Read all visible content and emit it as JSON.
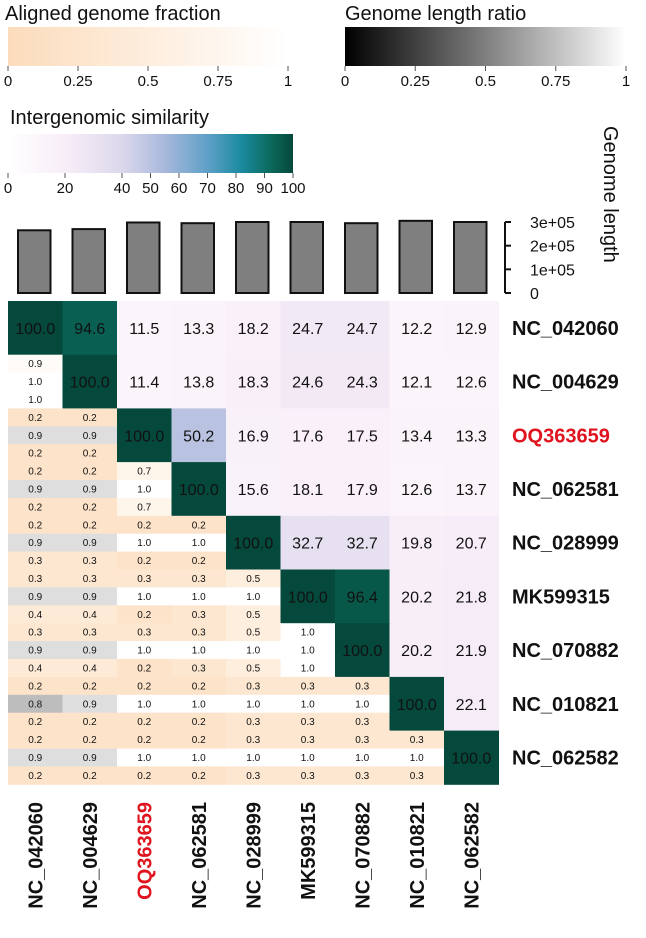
{
  "chart_data": {
    "type": "heatmap",
    "genomes": [
      "NC_042060",
      "NC_004629",
      "OQ363659",
      "NC_062581",
      "NC_028999",
      "MK599315",
      "NC_070882",
      "NC_010821",
      "NC_062582"
    ],
    "highlight_genome": "OQ363659",
    "highlight_color": "#e0141e",
    "similarity_upper": [
      [
        100.0,
        94.6,
        11.5,
        13.3,
        18.2,
        24.7,
        24.7,
        12.2,
        12.9
      ],
      [
        null,
        100.0,
        11.4,
        13.8,
        18.3,
        24.6,
        24.3,
        12.1,
        12.6
      ],
      [
        null,
        null,
        100.0,
        50.2,
        16.9,
        17.6,
        17.5,
        13.4,
        13.3
      ],
      [
        null,
        null,
        null,
        100.0,
        15.6,
        18.1,
        17.9,
        12.6,
        13.7
      ],
      [
        null,
        null,
        null,
        null,
        100.0,
        32.7,
        32.7,
        19.8,
        20.7
      ],
      [
        null,
        null,
        null,
        null,
        null,
        100.0,
        96.4,
        20.2,
        21.8
      ],
      [
        null,
        null,
        null,
        null,
        null,
        null,
        100.0,
        20.2,
        21.9
      ],
      [
        null,
        null,
        null,
        null,
        null,
        null,
        null,
        100.0,
        22.1
      ],
      [
        null,
        null,
        null,
        null,
        null,
        null,
        null,
        null,
        100.0
      ]
    ],
    "lower_triangle_triplets": [
      [],
      [
        [
          0.9,
          1.0,
          1.0
        ]
      ],
      [
        [
          0.2,
          0.9,
          0.2
        ],
        [
          0.2,
          0.9,
          0.2
        ]
      ],
      [
        [
          0.2,
          0.9,
          0.2
        ],
        [
          0.2,
          0.9,
          0.2
        ],
        [
          0.7,
          1.0,
          0.7
        ]
      ],
      [
        [
          0.2,
          0.9,
          0.3
        ],
        [
          0.2,
          0.9,
          0.3
        ],
        [
          0.2,
          1.0,
          0.2
        ],
        [
          0.2,
          1.0,
          0.2
        ]
      ],
      [
        [
          0.3,
          0.9,
          0.4
        ],
        [
          0.3,
          0.9,
          0.4
        ],
        [
          0.3,
          1.0,
          0.2
        ],
        [
          0.3,
          1.0,
          0.3
        ],
        [
          0.5,
          1.0,
          0.5
        ]
      ],
      [
        [
          0.3,
          0.9,
          0.4
        ],
        [
          0.3,
          0.9,
          0.4
        ],
        [
          0.3,
          1.0,
          0.2
        ],
        [
          0.3,
          1.0,
          0.3
        ],
        [
          0.5,
          1.0,
          0.5
        ],
        [
          1.0,
          1.0,
          1.0
        ]
      ],
      [
        [
          0.2,
          0.8,
          0.2
        ],
        [
          0.2,
          0.9,
          0.2
        ],
        [
          0.2,
          1.0,
          0.2
        ],
        [
          0.2,
          1.0,
          0.2
        ],
        [
          0.3,
          1.0,
          0.3
        ],
        [
          0.3,
          1.0,
          0.3
        ],
        [
          0.3,
          1.0,
          0.3
        ]
      ],
      [
        [
          0.2,
          0.9,
          0.2
        ],
        [
          0.2,
          0.9,
          0.2
        ],
        [
          0.2,
          1.0,
          0.2
        ],
        [
          0.2,
          1.0,
          0.2
        ],
        [
          0.3,
          1.0,
          0.3
        ],
        [
          0.3,
          1.0,
          0.3
        ],
        [
          0.3,
          1.0,
          0.3
        ],
        [
          0.3,
          1.0,
          0.3
        ]
      ]
    ],
    "genome_lengths": [
      265000,
      270000,
      298000,
      295000,
      300000,
      300000,
      295000,
      305000,
      300000
    ],
    "genome_length_axis": {
      "label": "Genome length",
      "ticks": [
        "0",
        "1e+05",
        "2e+05",
        "3e+05"
      ],
      "tick_values": [
        0,
        100000,
        200000,
        300000
      ]
    },
    "legends": {
      "aligned": {
        "title": "Aligned genome fraction",
        "ticks": [
          "0",
          "0.25",
          "0.5",
          "0.75",
          "1"
        ],
        "tick_values": [
          0,
          0.25,
          0.5,
          0.75,
          1
        ],
        "color_low": "#ffffff",
        "color_high": "#fcdcbc"
      },
      "length_ratio": {
        "title": "Genome length ratio",
        "ticks": [
          "0",
          "0.25",
          "0.5",
          "0.75",
          "1"
        ],
        "tick_values": [
          0,
          0.25,
          0.5,
          0.75,
          1
        ],
        "color_low": "#000000",
        "color_high": "#ffffff"
      },
      "similarity": {
        "title": "Intergenomic similarity",
        "ticks": [
          "0",
          "20",
          "40",
          "50",
          "60",
          "70",
          "80",
          "90",
          "100"
        ],
        "tick_values": [
          0,
          20,
          40,
          50,
          60,
          70,
          80,
          90,
          100
        ],
        "colors": [
          "#ffffff",
          "#f8eef8",
          "#dcd8ec",
          "#a8b8dc",
          "#5fa0c8",
          "#1a8aa0",
          "#0b6a5c",
          "#05493c"
        ]
      }
    }
  }
}
